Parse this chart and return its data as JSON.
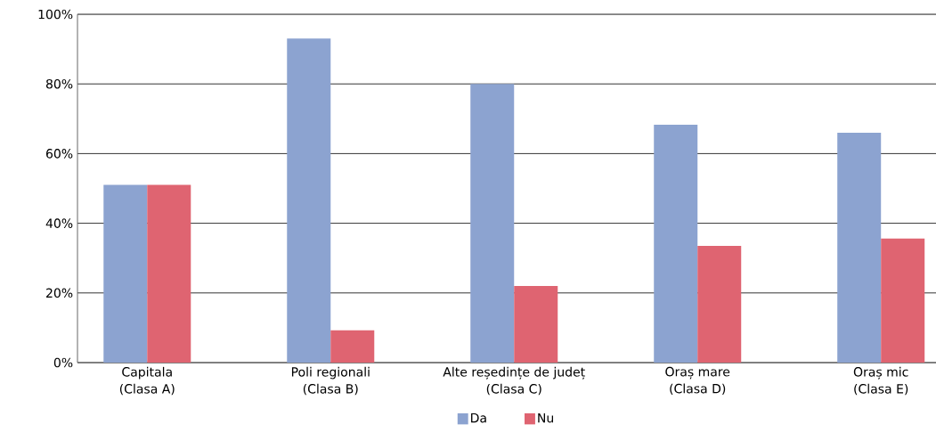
{
  "chart_data": {
    "type": "bar",
    "categories": [
      "Capitala\n(Clasa A)",
      "Poli regionali\n(Clasa B)",
      "Alte reședințe de județ\n(Clasa C)",
      "Oraș mare\n(Clasa D)",
      "Oraș mic\n(Clasa E)"
    ],
    "series": [
      {
        "name": "Da",
        "color": "#8ca3d0",
        "values": [
          51,
          93,
          80,
          68.3,
          66
        ]
      },
      {
        "name": "Nu",
        "color": "#df6471",
        "values": [
          51,
          9.3,
          22,
          33.5,
          35.6
        ]
      }
    ],
    "ylim": [
      0,
      100
    ],
    "yticks": [
      {
        "value": 0,
        "label": "0%"
      },
      {
        "value": 20,
        "label": "20%"
      },
      {
        "value": 40,
        "label": "40%"
      },
      {
        "value": 60,
        "label": "60%"
      },
      {
        "value": 80,
        "label": "80%"
      },
      {
        "value": 100,
        "label": "100%"
      }
    ],
    "grid": "y",
    "legend": "bottom"
  }
}
